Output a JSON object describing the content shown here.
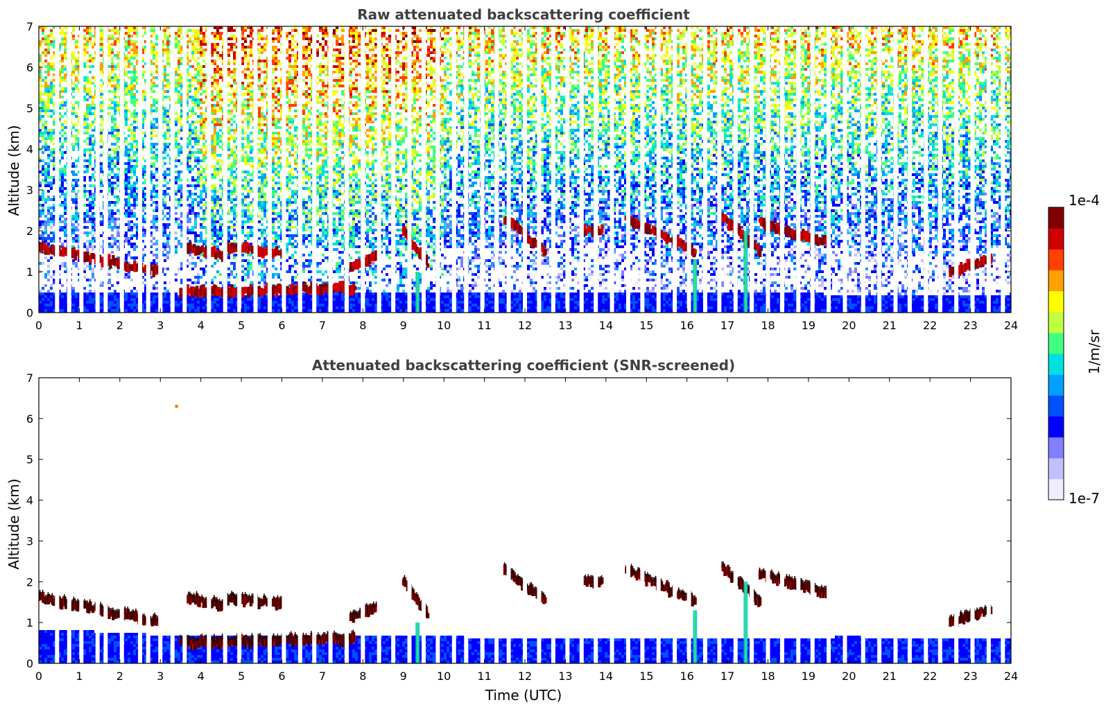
{
  "chart_data": [
    {
      "type": "heatmap",
      "title": "Raw attenuated backscattering coefficient",
      "xlabel": "",
      "ylabel": "Altitude (km)",
      "xlim": [
        0,
        24
      ],
      "ylim": [
        0,
        7
      ],
      "xticks": [
        "0",
        "1",
        "2",
        "3",
        "4",
        "5",
        "6",
        "7",
        "8",
        "9",
        "10",
        "11",
        "12",
        "13",
        "14",
        "15",
        "16",
        "17",
        "18",
        "19",
        "20",
        "21",
        "22",
        "23",
        "24"
      ],
      "yticks": [
        "0",
        "1",
        "2",
        "3",
        "4",
        "5",
        "6",
        "7"
      ],
      "grid": false,
      "noise_texture": "raw",
      "data_gaps_hours": [
        0.45,
        0.75,
        1.05,
        1.45,
        1.65,
        2.05,
        2.5,
        2.7,
        3.0,
        3.3,
        3.6,
        4.2,
        4.6,
        4.95,
        5.35,
        5.7,
        6.05,
        6.45,
        6.8,
        7.2,
        7.6,
        8.0,
        8.4,
        8.75,
        9.15,
        9.5,
        9.85,
        10.25,
        10.55,
        10.95,
        11.3,
        11.6,
        12.0,
        12.35,
        12.7,
        13.05,
        13.4,
        13.75,
        14.15,
        14.55,
        14.9,
        15.3,
        15.7,
        16.05,
        16.45,
        16.8,
        17.2,
        17.6,
        18.0,
        18.35,
        18.75,
        19.1,
        19.5,
        19.9,
        20.35,
        20.75,
        21.15,
        21.5,
        21.9,
        22.25,
        22.65,
        23.05,
        23.45,
        23.8
      ],
      "aerosol_layer_top_km": [
        [
          0,
          0.5
        ],
        [
          3,
          0.5
        ],
        [
          3.5,
          0.45
        ],
        [
          5,
          0.4
        ],
        [
          6,
          0.45
        ],
        [
          7,
          0.55
        ],
        [
          8,
          0.5
        ],
        [
          9,
          0.5
        ],
        [
          12,
          0.5
        ],
        [
          16,
          0.5
        ],
        [
          20,
          0.45
        ],
        [
          24,
          0.45
        ]
      ],
      "cloud_layers": [
        {
          "t0": 0.0,
          "t1": 3.0,
          "alt0_km": 1.6,
          "alt1_km": 1.0
        },
        {
          "t0": 3.5,
          "t1": 7.8,
          "alt0_km": 0.5,
          "alt1_km": 0.6
        },
        {
          "t0": 3.6,
          "t1": 4.6,
          "alt0_km": 1.6,
          "alt1_km": 1.4
        },
        {
          "t0": 4.6,
          "t1": 6.0,
          "alt0_km": 1.6,
          "alt1_km": 1.45
        },
        {
          "t0": 7.7,
          "t1": 8.4,
          "alt0_km": 1.1,
          "alt1_km": 1.4
        },
        {
          "t0": 9.0,
          "t1": 9.6,
          "alt0_km": 2.0,
          "alt1_km": 1.2
        },
        {
          "t0": 11.5,
          "t1": 12.5,
          "alt0_km": 2.3,
          "alt1_km": 1.5
        },
        {
          "t0": 13.4,
          "t1": 13.9,
          "alt0_km": 2.0,
          "alt1_km": 2.0
        },
        {
          "t0": 14.5,
          "t1": 16.2,
          "alt0_km": 2.3,
          "alt1_km": 1.5
        },
        {
          "t0": 16.8,
          "t1": 17.8,
          "alt0_km": 2.4,
          "alt1_km": 1.5
        },
        {
          "t0": 17.8,
          "t1": 19.5,
          "alt0_km": 2.2,
          "alt1_km": 1.7
        },
        {
          "t0": 22.5,
          "t1": 23.5,
          "alt0_km": 1.0,
          "alt1_km": 1.3
        }
      ],
      "plumes": [
        {
          "t": 9.35,
          "alt_km": 1.0
        },
        {
          "t": 16.2,
          "alt_km": 1.3
        },
        {
          "t": 17.45,
          "alt_km": 2.0
        }
      ]
    },
    {
      "type": "heatmap",
      "title": "Attenuated backscattering coefficient (SNR-screened)",
      "xlabel": "Time (UTC)",
      "ylabel": "Altitude (km)",
      "xlim": [
        0,
        24
      ],
      "ylim": [
        0,
        7
      ],
      "xticks": [
        "0",
        "1",
        "2",
        "3",
        "4",
        "5",
        "6",
        "7",
        "8",
        "9",
        "10",
        "11",
        "12",
        "13",
        "14",
        "15",
        "16",
        "17",
        "18",
        "19",
        "20",
        "21",
        "22",
        "23",
        "24"
      ],
      "yticks": [
        "0",
        "1",
        "2",
        "3",
        "4",
        "5",
        "6",
        "7"
      ],
      "grid": false,
      "noise_texture": "screened",
      "data_gaps_hours": [
        0.45,
        0.75,
        1.05,
        1.45,
        1.65,
        2.05,
        2.5,
        2.7,
        3.0,
        3.3,
        3.6,
        4.2,
        4.6,
        4.95,
        5.35,
        5.7,
        6.05,
        6.45,
        6.8,
        7.2,
        7.6,
        8.0,
        8.4,
        8.75,
        9.15,
        9.5,
        9.85,
        10.25,
        10.55,
        10.95,
        11.3,
        11.6,
        12.0,
        12.35,
        12.7,
        13.05,
        13.4,
        13.75,
        14.15,
        14.55,
        14.9,
        15.3,
        15.7,
        16.05,
        16.45,
        16.8,
        17.2,
        17.6,
        18.0,
        18.35,
        18.75,
        19.1,
        19.5,
        19.9,
        20.35,
        20.75,
        21.15,
        21.5,
        21.9,
        22.25,
        22.65,
        23.05,
        23.45,
        23.8
      ],
      "aerosol_layer_top_km": [
        [
          0,
          0.85
        ],
        [
          3,
          0.7
        ],
        [
          4,
          0.65
        ],
        [
          8,
          0.65
        ],
        [
          10,
          0.65
        ],
        [
          16,
          0.6
        ],
        [
          20,
          0.65
        ],
        [
          24,
          0.6
        ]
      ],
      "cloud_layers": [
        {
          "t0": 0.0,
          "t1": 3.0,
          "alt0_km": 1.6,
          "alt1_km": 1.0
        },
        {
          "t0": 3.5,
          "t1": 7.8,
          "alt0_km": 0.5,
          "alt1_km": 0.6
        },
        {
          "t0": 3.6,
          "t1": 4.6,
          "alt0_km": 1.6,
          "alt1_km": 1.4
        },
        {
          "t0": 4.6,
          "t1": 6.0,
          "alt0_km": 1.6,
          "alt1_km": 1.45
        },
        {
          "t0": 7.7,
          "t1": 8.4,
          "alt0_km": 1.1,
          "alt1_km": 1.4
        },
        {
          "t0": 9.0,
          "t1": 9.6,
          "alt0_km": 2.0,
          "alt1_km": 1.2
        },
        {
          "t0": 11.5,
          "t1": 12.5,
          "alt0_km": 2.3,
          "alt1_km": 1.5
        },
        {
          "t0": 13.4,
          "t1": 13.9,
          "alt0_km": 2.0,
          "alt1_km": 2.0
        },
        {
          "t0": 14.5,
          "t1": 16.2,
          "alt0_km": 2.3,
          "alt1_km": 1.5
        },
        {
          "t0": 16.8,
          "t1": 17.8,
          "alt0_km": 2.4,
          "alt1_km": 1.5
        },
        {
          "t0": 17.8,
          "t1": 19.5,
          "alt0_km": 2.2,
          "alt1_km": 1.7
        },
        {
          "t0": 22.5,
          "t1": 23.5,
          "alt0_km": 1.0,
          "alt1_km": 1.3
        }
      ],
      "plumes": [
        {
          "t": 9.35,
          "alt_km": 1.0
        },
        {
          "t": 16.2,
          "alt_km": 1.3
        },
        {
          "t": 17.45,
          "alt_km": 2.0
        }
      ],
      "isolated_points": [
        {
          "t": 3.4,
          "alt_km": 6.3
        }
      ]
    }
  ],
  "colorbar": {
    "label": "1/m/sr",
    "min_label": "1e-7",
    "max_label": "1e-4",
    "scale": "log",
    "colors": [
      "#eeeeff",
      "#c0c0ff",
      "#8080ff",
      "#0000ff",
      "#0050ff",
      "#00a0ff",
      "#00e0e0",
      "#40ff80",
      "#c0ff40",
      "#ffff00",
      "#ffa000",
      "#ff4000",
      "#d00000",
      "#800000"
    ]
  }
}
